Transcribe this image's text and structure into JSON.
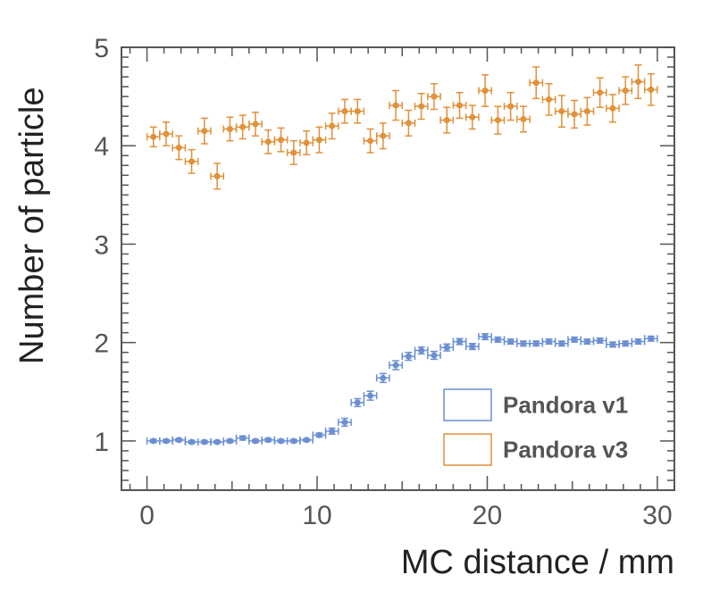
{
  "chart_data": {
    "type": "scatter",
    "xlabel": "MC distance / mm",
    "ylabel": "Number of particle",
    "xlim": [
      -1.5,
      31
    ],
    "ylim": [
      0.5,
      5
    ],
    "x_ticks": [
      0,
      10,
      20,
      30
    ],
    "y_ticks": [
      1,
      2,
      3,
      4,
      5
    ],
    "legend_position": "bottom-right",
    "series": [
      {
        "name": "Pandora v1",
        "color": "#6b8fd4",
        "x": [
          0.375,
          1.125,
          1.875,
          2.625,
          3.375,
          4.125,
          4.875,
          5.625,
          6.375,
          7.125,
          7.875,
          8.625,
          9.375,
          10.125,
          10.875,
          11.625,
          12.375,
          13.125,
          13.875,
          14.625,
          15.375,
          16.125,
          16.875,
          17.625,
          18.375,
          19.125,
          19.875,
          20.625,
          21.375,
          22.125,
          22.875,
          23.625,
          24.375,
          25.125,
          25.875,
          26.625,
          27.375,
          28.125,
          28.875,
          29.625
        ],
        "y": [
          1.0,
          1.0,
          1.01,
          0.99,
          0.99,
          0.99,
          1.0,
          1.03,
          1.0,
          1.01,
          1.0,
          1.0,
          1.01,
          1.06,
          1.1,
          1.19,
          1.39,
          1.46,
          1.64,
          1.77,
          1.86,
          1.92,
          1.87,
          1.95,
          2.01,
          1.96,
          2.06,
          2.03,
          2.01,
          1.99,
          1.99,
          2.01,
          1.99,
          2.03,
          2.01,
          2.02,
          1.98,
          1.99,
          2.01,
          2.04
        ],
        "yerr": [
          0.015,
          0.015,
          0.015,
          0.015,
          0.015,
          0.015,
          0.015,
          0.02,
          0.015,
          0.015,
          0.015,
          0.015,
          0.015,
          0.02,
          0.03,
          0.04,
          0.04,
          0.045,
          0.045,
          0.045,
          0.04,
          0.035,
          0.04,
          0.035,
          0.03,
          0.03,
          0.03,
          0.025,
          0.025,
          0.025,
          0.025,
          0.025,
          0.025,
          0.025,
          0.025,
          0.025,
          0.025,
          0.025,
          0.025,
          0.025
        ]
      },
      {
        "name": "Pandora v3",
        "color": "#e0913a",
        "x": [
          0.375,
          1.125,
          1.875,
          2.625,
          3.375,
          4.125,
          4.875,
          5.625,
          6.375,
          7.125,
          7.875,
          8.625,
          9.375,
          10.125,
          10.875,
          11.625,
          12.375,
          13.125,
          13.875,
          14.625,
          15.375,
          16.125,
          16.875,
          17.625,
          18.375,
          19.125,
          19.875,
          20.625,
          21.375,
          22.125,
          22.875,
          23.625,
          24.375,
          25.125,
          25.875,
          26.625,
          27.375,
          28.125,
          28.875,
          29.625
        ],
        "y": [
          4.09,
          4.12,
          3.98,
          3.84,
          4.15,
          3.69,
          4.17,
          4.19,
          4.22,
          4.04,
          4.06,
          3.93,
          4.03,
          4.06,
          4.2,
          4.35,
          4.35,
          4.05,
          4.1,
          4.41,
          4.23,
          4.4,
          4.5,
          4.26,
          4.41,
          4.29,
          4.56,
          4.26,
          4.4,
          4.27,
          4.64,
          4.47,
          4.35,
          4.32,
          4.35,
          4.54,
          4.38,
          4.56,
          4.65,
          4.57
        ],
        "yerr": [
          0.1,
          0.12,
          0.12,
          0.12,
          0.13,
          0.13,
          0.12,
          0.12,
          0.12,
          0.12,
          0.12,
          0.12,
          0.12,
          0.13,
          0.13,
          0.12,
          0.12,
          0.12,
          0.13,
          0.15,
          0.13,
          0.13,
          0.13,
          0.13,
          0.13,
          0.12,
          0.16,
          0.14,
          0.14,
          0.13,
          0.16,
          0.16,
          0.16,
          0.14,
          0.14,
          0.15,
          0.14,
          0.14,
          0.17,
          0.16
        ]
      }
    ]
  }
}
